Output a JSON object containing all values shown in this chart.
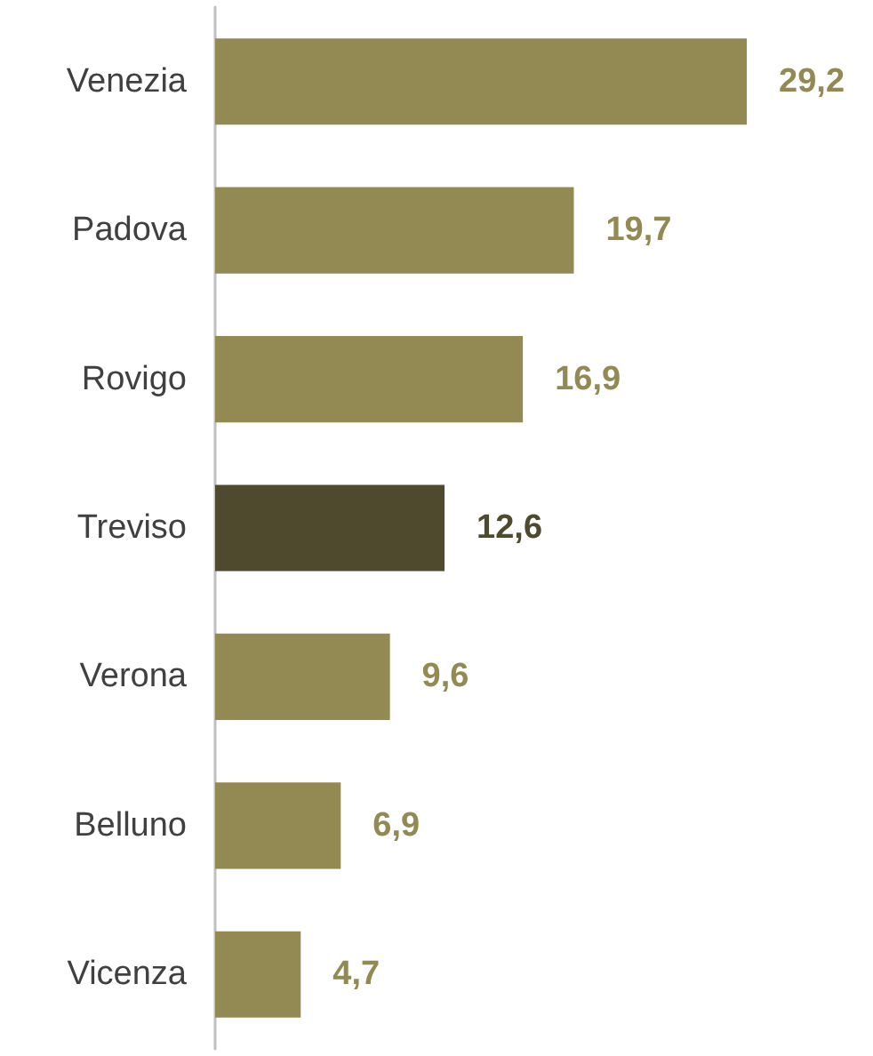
{
  "chart_data": {
    "type": "bar",
    "orientation": "horizontal",
    "categories": [
      "Venezia",
      "Padova",
      "Rovigo",
      "Treviso",
      "Verona",
      "Belluno",
      "Vicenza"
    ],
    "values": [
      29.2,
      19.7,
      16.9,
      12.6,
      9.6,
      6.9,
      4.7
    ],
    "colors": [
      "#938953",
      "#938953",
      "#938953",
      "#4f4a2d",
      "#938953",
      "#938953",
      "#938953"
    ],
    "value_labels": [
      "29,2",
      "19,7",
      "16,9",
      "12,6",
      "9,6",
      "6,9",
      "4,7"
    ]
  }
}
